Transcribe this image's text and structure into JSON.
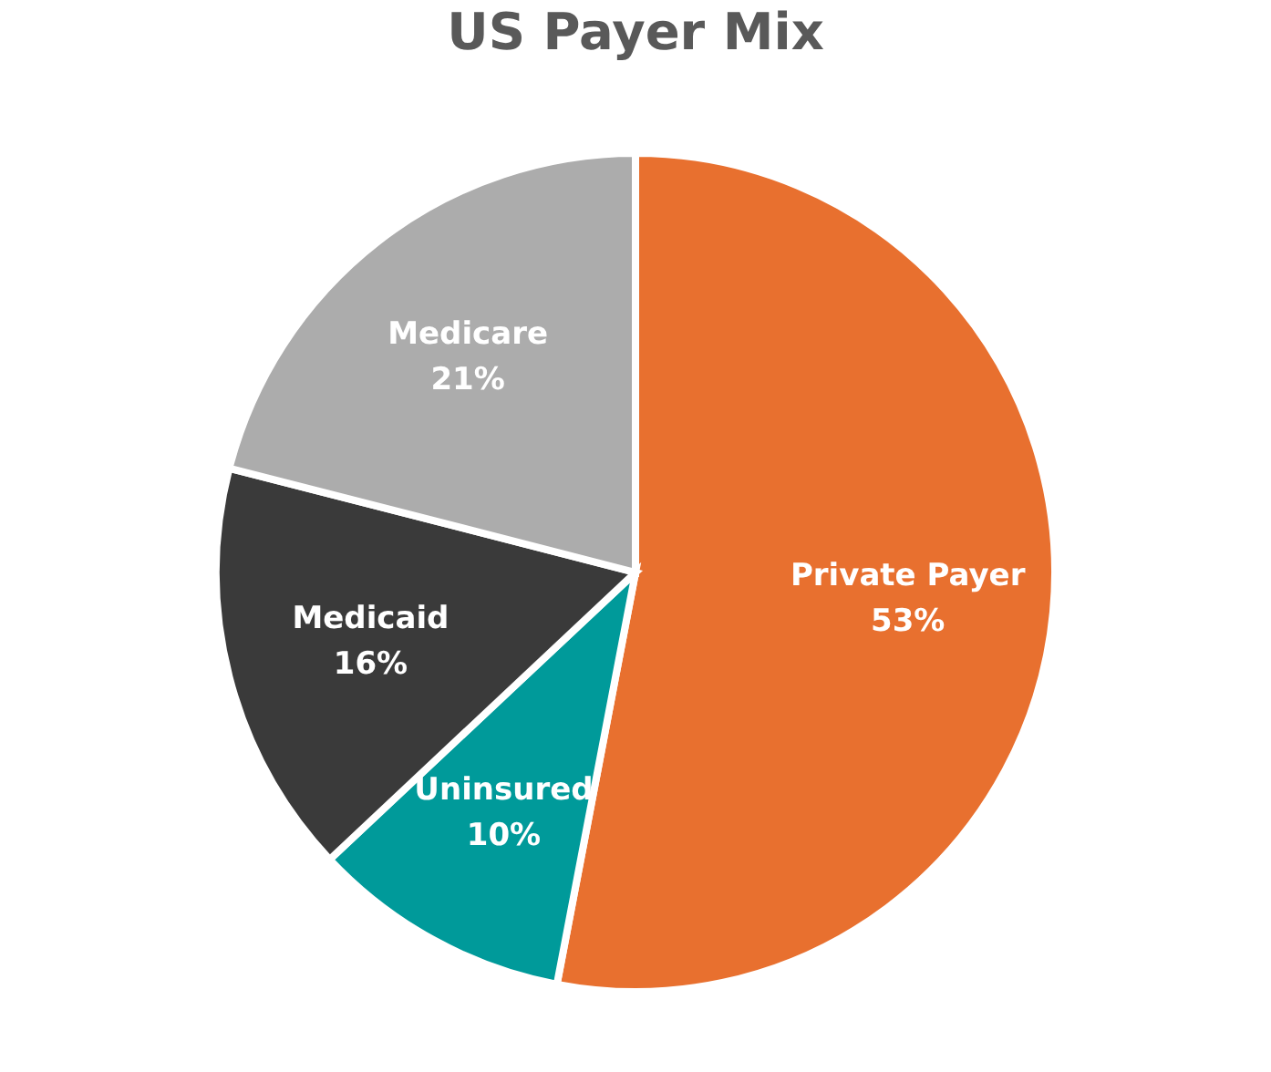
{
  "chart_data": {
    "type": "pie",
    "title": "US Payer Mix",
    "categories": [
      "Private Payer",
      "Uninsured",
      "Medicaid",
      "Medicare"
    ],
    "values": [
      53,
      10,
      16,
      21
    ],
    "colors": [
      "#e8702f",
      "#009a9a",
      "#3a3a3a",
      "#acacac"
    ],
    "value_labels": [
      "53%",
      "10%",
      "16%",
      "21%"
    ],
    "legend": false
  }
}
